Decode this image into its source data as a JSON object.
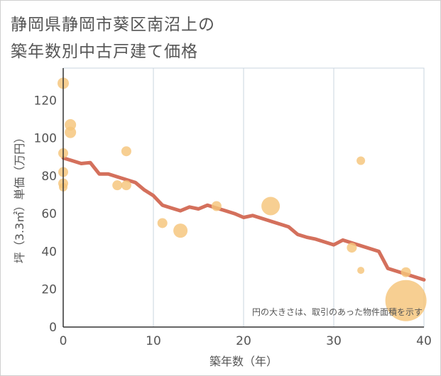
{
  "title_line1": "静岡県静岡市葵区南沼上の",
  "title_line2": "築年数別中古戸建て価格",
  "chart_data": {
    "type": "scatter",
    "xlabel": "築年数（年）",
    "ylabel": "坪（3.3㎡）単価（万円）",
    "xlim": [
      0,
      40
    ],
    "ylim": [
      0,
      137
    ],
    "xticks": [
      0,
      10,
      20,
      30,
      40
    ],
    "yticks": [
      0,
      20,
      40,
      60,
      80,
      100,
      120
    ],
    "grid": "vertical",
    "annotation": "円の大きさは、取引のあった物件面積を示す",
    "colors": {
      "bubble": "#f5c57a",
      "trend": "#d4705c",
      "grid": "#c8d4df",
      "axis": "#333333"
    },
    "points": [
      {
        "x": 0,
        "y": 129,
        "r": 8
      },
      {
        "x": 0,
        "y": 92,
        "r": 7
      },
      {
        "x": 0,
        "y": 82,
        "r": 7
      },
      {
        "x": 0,
        "y": 76,
        "r": 7
      },
      {
        "x": 0,
        "y": 74,
        "r": 6
      },
      {
        "x": 0.8,
        "y": 107,
        "r": 8
      },
      {
        "x": 0.8,
        "y": 103,
        "r": 8
      },
      {
        "x": 6,
        "y": 75,
        "r": 7
      },
      {
        "x": 7,
        "y": 93,
        "r": 7
      },
      {
        "x": 7,
        "y": 75,
        "r": 7
      },
      {
        "x": 11,
        "y": 55,
        "r": 7
      },
      {
        "x": 13,
        "y": 51,
        "r": 10
      },
      {
        "x": 17,
        "y": 64,
        "r": 7
      },
      {
        "x": 23,
        "y": 64,
        "r": 13
      },
      {
        "x": 32,
        "y": 42,
        "r": 7
      },
      {
        "x": 33,
        "y": 88,
        "r": 6
      },
      {
        "x": 33,
        "y": 30,
        "r": 5
      },
      {
        "x": 38,
        "y": 29,
        "r": 7
      },
      {
        "x": 38,
        "y": 14,
        "r": 29
      }
    ],
    "trend": {
      "x": [
        0,
        1,
        2,
        3,
        4,
        5,
        6,
        7,
        8,
        9,
        10,
        11,
        12,
        13,
        14,
        15,
        16,
        17,
        18,
        19,
        20,
        21,
        22,
        23,
        24,
        25,
        26,
        27,
        28,
        29,
        30,
        31,
        32,
        33,
        34,
        35,
        36,
        37,
        38,
        39,
        40
      ],
      "y": [
        89.5,
        88,
        86.5,
        87,
        81,
        81,
        79.5,
        78,
        76.5,
        72.5,
        69.5,
        64.5,
        63,
        61.5,
        63.5,
        62.5,
        64.5,
        63,
        61.5,
        60,
        58,
        59,
        57.5,
        56,
        54.5,
        53,
        49,
        47.5,
        46.5,
        45,
        43.5,
        46,
        44.5,
        43,
        41.5,
        40,
        31,
        29.5,
        28,
        26.5,
        25
      ]
    }
  }
}
